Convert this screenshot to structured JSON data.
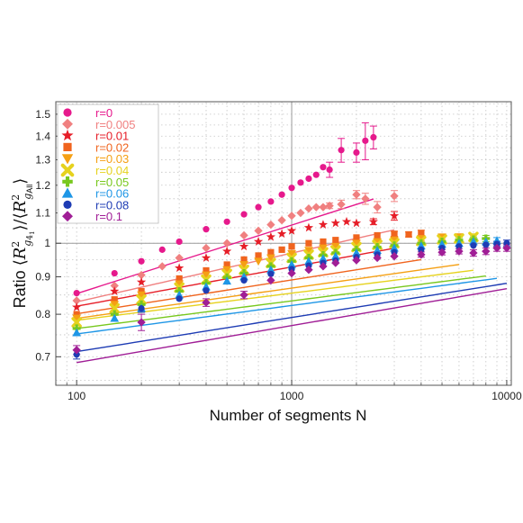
{
  "chart_data": {
    "type": "scatter",
    "xlabel": "Number of segments N",
    "ylabel": {
      "prefix": "Ratio ",
      "num_R": "R",
      "num_sup": "2",
      "num_sub_g": "g",
      "num_sub_knot": "4",
      "num_sub_knot_sub": "1",
      "slash": "/",
      "den_R": "R",
      "den_sup": "2",
      "den_sub_g": "g",
      "den_sub_all": "All"
    },
    "x_scale": "log",
    "y_scale": "log",
    "xlim": [
      80,
      10500
    ],
    "ylim": [
      0.64,
      1.56
    ],
    "x_ticks": [
      {
        "value": 100,
        "label": "100"
      },
      {
        "value": 1000,
        "label": "1000"
      },
      {
        "value": 10000,
        "label": "10000"
      }
    ],
    "y_ticks": [
      {
        "value": 0.7,
        "label": "0.7"
      },
      {
        "value": 0.8,
        "label": "0.8"
      },
      {
        "value": 0.9,
        "label": "0.9"
      },
      {
        "value": 1.0,
        "label": "1"
      },
      {
        "value": 1.1,
        "label": "1.1"
      },
      {
        "value": 1.2,
        "label": "1.2"
      },
      {
        "value": 1.3,
        "label": "1.3"
      },
      {
        "value": 1.4,
        "label": "1.4"
      },
      {
        "value": 1.5,
        "label": "1.5"
      }
    ],
    "grid": "dotted",
    "reference_lines": {
      "x": 1000,
      "y": 1.0
    },
    "legend_position": "top-left",
    "series": [
      {
        "name": "r=0",
        "color": "#e6198c",
        "marker": "circle",
        "x": [
          100,
          150,
          200,
          250,
          300,
          400,
          500,
          600,
          700,
          800,
          900,
          1000,
          1100,
          1200,
          1300,
          1400,
          1500,
          1700,
          2000,
          2200,
          2400
        ],
        "y": [
          0.855,
          0.91,
          0.945,
          0.98,
          1.005,
          1.045,
          1.07,
          1.095,
          1.12,
          1.14,
          1.165,
          1.19,
          1.21,
          1.225,
          1.24,
          1.27,
          1.26,
          1.34,
          1.33,
          1.38,
          1.395
        ],
        "err": [
          0,
          0,
          0,
          0,
          0,
          0,
          0,
          0,
          0,
          0,
          0,
          0,
          0,
          0,
          0,
          0,
          0.03,
          0.05,
          0.04,
          0.08,
          0.05
        ],
        "fit": {
          "a": 0.555,
          "b": 0.0935
        }
      },
      {
        "name": "r=0.005",
        "color": "#f08080",
        "marker": "diamond",
        "x": [
          100,
          150,
          200,
          250,
          300,
          400,
          500,
          600,
          700,
          800,
          900,
          1000,
          1100,
          1200,
          1300,
          1400,
          1500,
          1700,
          2000,
          2200,
          2500,
          3000
        ],
        "y": [
          0.835,
          0.875,
          0.905,
          0.93,
          0.955,
          0.985,
          1.0,
          1.025,
          1.04,
          1.06,
          1.075,
          1.09,
          1.1,
          1.115,
          1.12,
          1.12,
          1.125,
          1.13,
          1.165,
          1.15,
          1.12,
          1.16
        ],
        "err": [
          0,
          0,
          0,
          0,
          0,
          0,
          0,
          0,
          0,
          0,
          0,
          0,
          0,
          0,
          0,
          0,
          0.01,
          0.015,
          0.015,
          0.02,
          0.02,
          0.02
        ],
        "fit": {
          "a": 0.612,
          "b": 0.0666
        }
      },
      {
        "name": "r=0.01",
        "color": "#e61e28",
        "marker": "star",
        "x": [
          100,
          150,
          200,
          300,
          400,
          500,
          600,
          700,
          800,
          900,
          1000,
          1200,
          1400,
          1600,
          1800,
          2000,
          2400,
          3000
        ],
        "y": [
          0.818,
          0.86,
          0.885,
          0.925,
          0.955,
          0.975,
          0.99,
          1.005,
          1.02,
          1.03,
          1.04,
          1.05,
          1.06,
          1.065,
          1.07,
          1.065,
          1.07,
          1.09
        ],
        "err": [
          0,
          0,
          0,
          0,
          0,
          0,
          0,
          0,
          0,
          0,
          0,
          0,
          0,
          0,
          0,
          0,
          0.01,
          0.015
        ],
        "fit": {
          "a": 0.641,
          "b": 0.0536
        }
      },
      {
        "name": "r=0.02",
        "color": "#f0641e",
        "marker": "square",
        "x": [
          100,
          150,
          200,
          300,
          400,
          500,
          600,
          700,
          800,
          900,
          1000,
          1200,
          1400,
          1600,
          2000,
          2500,
          3000,
          3500,
          4000
        ],
        "y": [
          0.8,
          0.838,
          0.86,
          0.895,
          0.918,
          0.935,
          0.95,
          0.962,
          0.972,
          0.98,
          0.99,
          1.0,
          1.005,
          1.01,
          1.018,
          1.025,
          1.03,
          1.028,
          1.032
        ],
        "err": [
          0,
          0,
          0,
          0,
          0,
          0,
          0,
          0,
          0,
          0,
          0,
          0,
          0,
          0,
          0,
          0,
          0.008,
          0.008,
          0.01
        ],
        "fit": {
          "a": 0.648,
          "b": 0.0461
        }
      },
      {
        "name": "r=0.03",
        "color": "#f5a014",
        "marker": "triangle-down",
        "x": [
          100,
          150,
          200,
          300,
          400,
          500,
          600,
          700,
          800,
          1000,
          1200,
          1400,
          1600,
          2000,
          2500,
          3000,
          4000,
          5000,
          6000
        ],
        "y": [
          0.79,
          0.825,
          0.85,
          0.88,
          0.905,
          0.92,
          0.935,
          0.945,
          0.955,
          0.968,
          0.978,
          0.985,
          0.99,
          1.0,
          1.005,
          1.01,
          1.015,
          1.02,
          1.02
        ],
        "err": [
          0,
          0,
          0,
          0,
          0,
          0,
          0,
          0,
          0,
          0,
          0,
          0,
          0,
          0,
          0,
          0,
          0.008,
          0.008,
          0.01
        ],
        "fit": {
          "a": 0.653,
          "b": 0.0413
        }
      },
      {
        "name": "r=0.04",
        "color": "#e6d21e",
        "marker": "cross",
        "x": [
          100,
          150,
          200,
          300,
          400,
          500,
          600,
          800,
          1000,
          1200,
          1400,
          1600,
          2000,
          2500,
          3000,
          4000,
          5000,
          6000,
          7000
        ],
        "y": [
          0.78,
          0.815,
          0.838,
          0.87,
          0.892,
          0.908,
          0.92,
          0.94,
          0.955,
          0.965,
          0.972,
          0.978,
          0.988,
          0.995,
          1.0,
          1.007,
          1.012,
          1.015,
          1.02
        ],
        "err": [
          0,
          0,
          0,
          0,
          0,
          0,
          0,
          0,
          0,
          0,
          0,
          0,
          0,
          0,
          0,
          0,
          0,
          0.008,
          0.01
        ],
        "fit": {
          "a": 0.662,
          "b": 0.037
        }
      },
      {
        "name": "r=0.05",
        "color": "#78c81e",
        "marker": "plus",
        "x": [
          100,
          150,
          200,
          300,
          400,
          500,
          600,
          800,
          1000,
          1200,
          1400,
          1600,
          2000,
          2500,
          3000,
          4000,
          5000,
          6000,
          7000,
          8000
        ],
        "y": [
          0.765,
          0.8,
          0.825,
          0.86,
          0.882,
          0.898,
          0.91,
          0.93,
          0.945,
          0.955,
          0.963,
          0.97,
          0.98,
          0.988,
          0.993,
          1.0,
          1.005,
          1.01,
          1.012,
          1.015
        ],
        "err": [
          0,
          0,
          0,
          0,
          0,
          0,
          0,
          0,
          0,
          0,
          0,
          0,
          0,
          0,
          0,
          0,
          0,
          0.008,
          0.008,
          0.01
        ],
        "fit": {
          "a": 0.643,
          "b": 0.0377
        }
      },
      {
        "name": "r=0.06",
        "color": "#1e96e6",
        "marker": "triangle-up",
        "x": [
          100,
          150,
          200,
          300,
          400,
          500,
          600,
          800,
          1000,
          1200,
          1400,
          1600,
          2000,
          2500,
          3000,
          4000,
          5000,
          6000,
          7000,
          8000,
          9000
        ],
        "y": [
          0.755,
          0.79,
          0.815,
          0.85,
          0.872,
          0.888,
          0.9,
          0.92,
          0.935,
          0.945,
          0.953,
          0.96,
          0.97,
          0.978,
          0.985,
          0.992,
          0.997,
          1.0,
          1.005,
          1.005,
          1.008
        ],
        "err": [
          0,
          0,
          0,
          0,
          0,
          0,
          0,
          0,
          0,
          0,
          0,
          0,
          0,
          0,
          0,
          0,
          0,
          0,
          0.008,
          0.008,
          0.01
        ],
        "fit": {
          "a": 0.629,
          "b": 0.0388
        }
      },
      {
        "name": "r=0.08",
        "color": "#1e3cb4",
        "marker": "circle",
        "x": [
          100,
          200,
          300,
          400,
          600,
          800,
          1000,
          1200,
          1400,
          1600,
          2000,
          2500,
          3000,
          4000,
          5000,
          6000,
          7000,
          8000,
          9000,
          10000
        ],
        "y": [
          0.705,
          0.815,
          0.84,
          0.862,
          0.89,
          0.908,
          0.922,
          0.932,
          0.94,
          0.947,
          0.957,
          0.965,
          0.972,
          0.98,
          0.985,
          0.99,
          0.993,
          0.995,
          0.998,
          1.0
        ],
        "err": [
          0.01,
          0.01,
          0,
          0,
          0,
          0,
          0,
          0,
          0,
          0,
          0,
          0,
          0,
          0,
          0,
          0,
          0,
          0,
          0.008,
          0.01
        ],
        "fit": {
          "a": 0.574,
          "b": 0.0466
        }
      },
      {
        "name": "r=0.1",
        "color": "#a01e96",
        "marker": "diamond",
        "x": [
          100,
          200,
          400,
          600,
          800,
          1000,
          1200,
          1400,
          1600,
          2000,
          2500,
          3000,
          4000,
          5000,
          6000,
          7000,
          8000,
          9000,
          10000
        ],
        "y": [
          0.715,
          0.78,
          0.83,
          0.85,
          0.89,
          0.91,
          0.92,
          0.93,
          0.94,
          0.948,
          0.955,
          0.96,
          0.965,
          0.972,
          0.975,
          0.97,
          0.975,
          0.985,
          0.985
        ],
        "err": [
          0.01,
          0.02,
          0.01,
          0.01,
          0,
          0,
          0,
          0,
          0,
          0,
          0,
          0,
          0.008,
          0.008,
          0.008,
          0.01,
          0.01,
          0.01,
          0.01
        ],
        "fit": {
          "a": 0.545,
          "b": 0.0504
        }
      }
    ]
  }
}
